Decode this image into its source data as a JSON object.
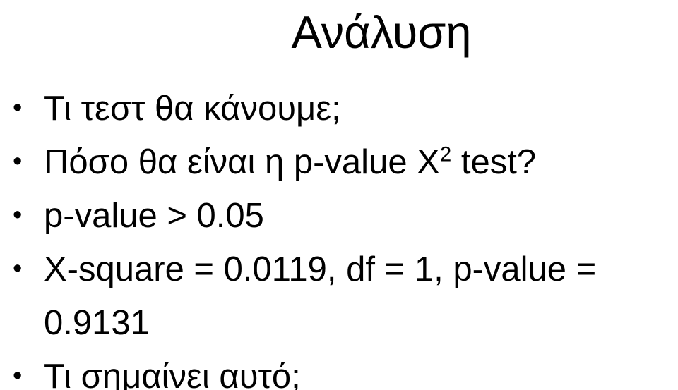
{
  "title": "Ανάλυση",
  "bullets": [
    {
      "text": "Τι τεστ θα κάνουμε;"
    },
    {
      "pre": "Πόσο θα είναι η p-value Χ",
      "sup": "2",
      "post": " test?"
    },
    {
      "text": "p-value > 0.05"
    },
    {
      "text": "X-square = 0.0119, df = 1, p-value = 0.9131"
    },
    {
      "text": "Τι σημαίνει αυτό;"
    }
  ]
}
